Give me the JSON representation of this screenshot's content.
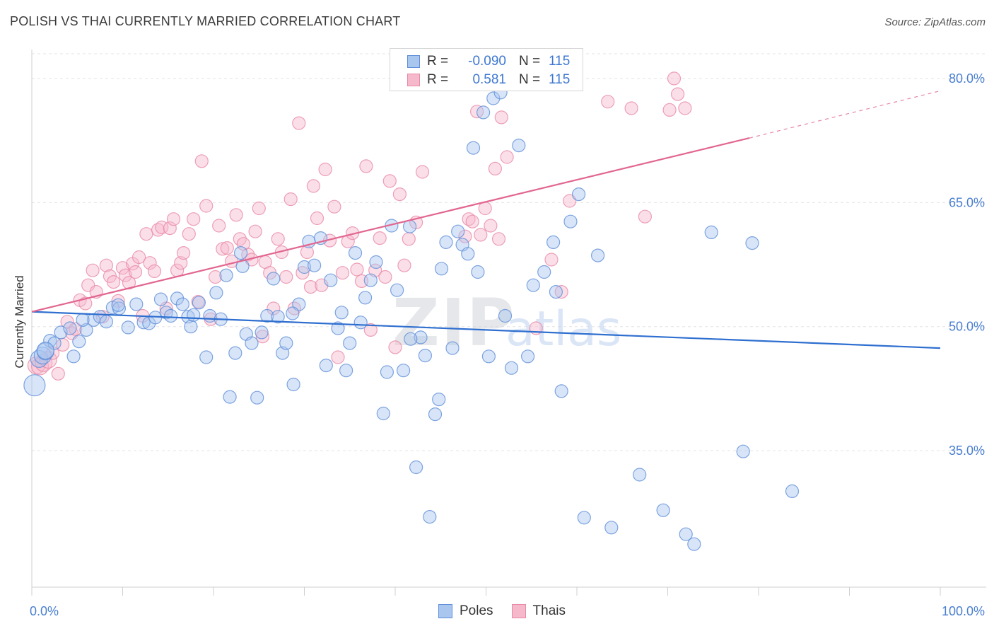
{
  "title": "POLISH VS THAI CURRENTLY MARRIED CORRELATION CHART",
  "source": "Source: ZipAtlas.com",
  "colors": {
    "poles_fill": "#a9c6ef",
    "poles_stroke": "#5f8fd8",
    "poles_line": "#2f6fd0",
    "thais_fill": "#f6b8cb",
    "thais_stroke": "#e88aa7",
    "thais_line": "#e2668f",
    "tick_text": "#4a7fd0",
    "grid": "#e3e3e3"
  },
  "legend_top": {
    "rows": [
      {
        "r_label": "R =",
        "r_value": "-0.090",
        "n_label": "N =",
        "n_value": "115"
      },
      {
        "r_label": "R =",
        "r_value": "0.581",
        "n_label": "N =",
        "n_value": "115"
      }
    ]
  },
  "legend_bottom": {
    "items": [
      {
        "label": "Poles"
      },
      {
        "label": "Thais"
      }
    ]
  },
  "chart_data": {
    "type": "scatter",
    "title": "POLISH VS THAI CURRENTLY MARRIED CORRELATION CHART",
    "xlabel": "",
    "ylabel": "Currently Married",
    "xlim": [
      0,
      100
    ],
    "ylim": [
      18.5,
      83.5
    ],
    "x_tick_labels": [
      "0.0%",
      "100.0%"
    ],
    "y_ticks": [
      35,
      50,
      65,
      80
    ],
    "y_tick_labels": [
      "35.0%",
      "50.0%",
      "65.0%",
      "80.0%"
    ],
    "grid": true,
    "legend_position": "bottom-center",
    "watermark": "ZIPatlas",
    "series": [
      {
        "name": "Poles",
        "r": -0.09,
        "n": 115,
        "trend": {
          "x0": 0,
          "y0": 51.8,
          "x1": 100,
          "y1": 47.4
        },
        "points": [
          [
            0.3,
            42.9
          ],
          [
            0.8,
            46.1
          ],
          [
            1.2,
            46.5
          ],
          [
            1.5,
            47.0
          ],
          [
            2.0,
            48.3
          ],
          [
            2.5,
            48.0
          ],
          [
            3.2,
            49.3
          ],
          [
            4.2,
            49.8
          ],
          [
            4.6,
            46.4
          ],
          [
            5.2,
            48.2
          ],
          [
            6.0,
            49.6
          ],
          [
            6.8,
            50.8
          ],
          [
            7.5,
            51.2
          ],
          [
            8.2,
            50.6
          ],
          [
            8.9,
            52.3
          ],
          [
            9.6,
            52.2
          ],
          [
            10.6,
            49.9
          ],
          [
            11.5,
            52.7
          ],
          [
            12.3,
            50.5
          ],
          [
            12.9,
            50.4
          ],
          [
            13.6,
            51.1
          ],
          [
            14.2,
            53.3
          ],
          [
            14.8,
            51.7
          ],
          [
            15.3,
            51.3
          ],
          [
            16.0,
            53.4
          ],
          [
            16.6,
            52.7
          ],
          [
            17.2,
            51.2
          ],
          [
            17.5,
            50.0
          ],
          [
            18.4,
            52.9
          ],
          [
            19.2,
            46.3
          ],
          [
            19.6,
            51.3
          ],
          [
            20.3,
            54.1
          ],
          [
            20.8,
            50.9
          ],
          [
            21.4,
            56.2
          ],
          [
            21.8,
            41.5
          ],
          [
            22.4,
            46.8
          ],
          [
            23.0,
            58.9
          ],
          [
            23.6,
            49.1
          ],
          [
            24.2,
            48.0
          ],
          [
            24.8,
            41.4
          ],
          [
            25.3,
            49.3
          ],
          [
            25.9,
            51.3
          ],
          [
            26.6,
            55.8
          ],
          [
            27.1,
            51.2
          ],
          [
            27.6,
            46.8
          ],
          [
            28.0,
            48.0
          ],
          [
            28.8,
            43.0
          ],
          [
            29.4,
            52.7
          ],
          [
            30.0,
            57.2
          ],
          [
            30.5,
            60.3
          ],
          [
            31.1,
            57.4
          ],
          [
            31.8,
            60.7
          ],
          [
            32.4,
            45.3
          ],
          [
            32.9,
            55.6
          ],
          [
            33.7,
            49.8
          ],
          [
            34.1,
            51.7
          ],
          [
            34.6,
            44.7
          ],
          [
            35.0,
            48.0
          ],
          [
            35.6,
            58.9
          ],
          [
            36.2,
            50.5
          ],
          [
            36.7,
            53.5
          ],
          [
            37.3,
            55.6
          ],
          [
            37.9,
            57.8
          ],
          [
            38.7,
            39.5
          ],
          [
            39.1,
            44.5
          ],
          [
            39.6,
            62.2
          ],
          [
            40.2,
            54.4
          ],
          [
            40.9,
            44.7
          ],
          [
            41.6,
            62.1
          ],
          [
            42.3,
            33.0
          ],
          [
            42.8,
            48.7
          ],
          [
            43.3,
            46.5
          ],
          [
            43.8,
            27.0
          ],
          [
            44.4,
            39.4
          ],
          [
            44.8,
            41.2
          ],
          [
            45.1,
            57.0
          ],
          [
            45.6,
            60.2
          ],
          [
            46.3,
            47.4
          ],
          [
            46.9,
            61.5
          ],
          [
            47.4,
            59.9
          ],
          [
            48.0,
            58.8
          ],
          [
            48.6,
            71.6
          ],
          [
            49.1,
            56.6
          ],
          [
            49.7,
            75.9
          ],
          [
            50.3,
            46.4
          ],
          [
            50.8,
            77.6
          ],
          [
            51.6,
            78.3
          ],
          [
            52.1,
            51.3
          ],
          [
            52.8,
            45.0
          ],
          [
            53.6,
            71.9
          ],
          [
            54.6,
            46.4
          ],
          [
            55.2,
            55.0
          ],
          [
            56.4,
            56.6
          ],
          [
            57.4,
            60.2
          ],
          [
            57.7,
            54.2
          ],
          [
            58.3,
            42.2
          ],
          [
            59.3,
            62.7
          ],
          [
            60.2,
            66.0
          ],
          [
            60.8,
            26.9
          ],
          [
            62.3,
            58.6
          ],
          [
            63.8,
            25.7
          ],
          [
            66.9,
            32.1
          ],
          [
            69.5,
            27.8
          ],
          [
            72.0,
            24.9
          ],
          [
            72.9,
            23.7
          ],
          [
            74.8,
            61.4
          ],
          [
            78.3,
            34.9
          ],
          [
            79.3,
            60.1
          ],
          [
            83.7,
            30.1
          ],
          [
            9.5,
            52.6
          ],
          [
            1.5,
            47.1
          ],
          [
            17.8,
            51.4
          ],
          [
            28.7,
            51.6
          ],
          [
            41.7,
            48.5
          ],
          [
            23.2,
            57.3
          ],
          [
            5.6,
            50.8
          ]
        ]
      },
      {
        "name": "Thais",
        "r": 0.581,
        "n": 115,
        "trend": {
          "x0": 0,
          "y0": 51.8,
          "x1": 79,
          "y1": 72.8,
          "dashed_to": {
            "x": 100,
            "y": 78.5
          }
        },
        "points": [
          [
            0.5,
            45.3
          ],
          [
            0.9,
            45.2
          ],
          [
            1.3,
            45.6
          ],
          [
            1.8,
            46.0
          ],
          [
            2.3,
            46.8
          ],
          [
            2.9,
            44.3
          ],
          [
            3.4,
            47.8
          ],
          [
            3.9,
            50.6
          ],
          [
            4.4,
            49.2
          ],
          [
            4.8,
            49.7
          ],
          [
            5.3,
            53.2
          ],
          [
            5.9,
            52.8
          ],
          [
            6.2,
            55.0
          ],
          [
            6.7,
            56.8
          ],
          [
            7.1,
            54.2
          ],
          [
            7.8,
            51.2
          ],
          [
            8.2,
            57.4
          ],
          [
            8.6,
            56.1
          ],
          [
            9.0,
            55.4
          ],
          [
            9.5,
            53.1
          ],
          [
            10.0,
            57.1
          ],
          [
            10.3,
            56.2
          ],
          [
            10.7,
            55.3
          ],
          [
            11.1,
            57.6
          ],
          [
            11.4,
            56.6
          ],
          [
            11.8,
            58.4
          ],
          [
            12.2,
            51.3
          ],
          [
            12.6,
            61.2
          ],
          [
            13.0,
            57.7
          ],
          [
            13.5,
            56.7
          ],
          [
            13.9,
            61.7
          ],
          [
            14.3,
            62.0
          ],
          [
            14.8,
            52.2
          ],
          [
            15.2,
            61.9
          ],
          [
            15.6,
            63.0
          ],
          [
            16.0,
            56.8
          ],
          [
            16.4,
            57.7
          ],
          [
            16.7,
            58.9
          ],
          [
            17.3,
            61.2
          ],
          [
            17.8,
            63.0
          ],
          [
            18.3,
            53.0
          ],
          [
            18.7,
            70.0
          ],
          [
            19.2,
            64.6
          ],
          [
            19.7,
            50.9
          ],
          [
            20.2,
            56.0
          ],
          [
            20.6,
            62.2
          ],
          [
            21.0,
            59.4
          ],
          [
            21.5,
            59.5
          ],
          [
            22.0,
            57.9
          ],
          [
            22.5,
            63.5
          ],
          [
            22.9,
            60.6
          ],
          [
            23.3,
            60.0
          ],
          [
            23.8,
            58.7
          ],
          [
            24.2,
            58.1
          ],
          [
            24.6,
            61.5
          ],
          [
            25.0,
            64.3
          ],
          [
            25.4,
            48.8
          ],
          [
            25.7,
            57.8
          ],
          [
            26.2,
            56.5
          ],
          [
            26.6,
            52.2
          ],
          [
            27.1,
            60.6
          ],
          [
            27.5,
            59.0
          ],
          [
            28.0,
            56.0
          ],
          [
            28.5,
            65.4
          ],
          [
            28.9,
            52.2
          ],
          [
            29.4,
            74.6
          ],
          [
            29.8,
            56.5
          ],
          [
            30.3,
            59.0
          ],
          [
            30.7,
            54.8
          ],
          [
            31.0,
            67.0
          ],
          [
            31.4,
            63.1
          ],
          [
            31.9,
            55.0
          ],
          [
            32.3,
            69.0
          ],
          [
            32.8,
            60.4
          ],
          [
            33.3,
            64.5
          ],
          [
            33.7,
            46.3
          ],
          [
            34.2,
            56.5
          ],
          [
            34.8,
            60.3
          ],
          [
            35.3,
            61.3
          ],
          [
            35.8,
            56.9
          ],
          [
            36.3,
            55.5
          ],
          [
            36.8,
            69.4
          ],
          [
            37.3,
            49.6
          ],
          [
            37.8,
            56.8
          ],
          [
            38.3,
            60.7
          ],
          [
            38.9,
            56.0
          ],
          [
            39.4,
            67.6
          ],
          [
            40.0,
            47.5
          ],
          [
            40.5,
            66.0
          ],
          [
            41.0,
            57.4
          ],
          [
            41.5,
            60.6
          ],
          [
            42.3,
            62.6
          ],
          [
            43.0,
            68.7
          ],
          [
            47.7,
            60.9
          ],
          [
            48.1,
            63.0
          ],
          [
            48.5,
            62.7
          ],
          [
            49.0,
            76.0
          ],
          [
            49.4,
            61.1
          ],
          [
            49.9,
            64.3
          ],
          [
            50.5,
            62.2
          ],
          [
            51.0,
            69.1
          ],
          [
            51.4,
            60.6
          ],
          [
            51.7,
            75.3
          ],
          [
            52.3,
            70.5
          ],
          [
            55.5,
            49.8
          ],
          [
            57.2,
            58.1
          ],
          [
            58.3,
            54.2
          ],
          [
            59.2,
            65.2
          ],
          [
            63.4,
            77.2
          ],
          [
            66.0,
            76.4
          ],
          [
            67.5,
            63.3
          ],
          [
            70.2,
            76.2
          ],
          [
            70.7,
            80.0
          ],
          [
            71.1,
            78.1
          ],
          [
            71.9,
            76.4
          ]
        ]
      }
    ]
  }
}
